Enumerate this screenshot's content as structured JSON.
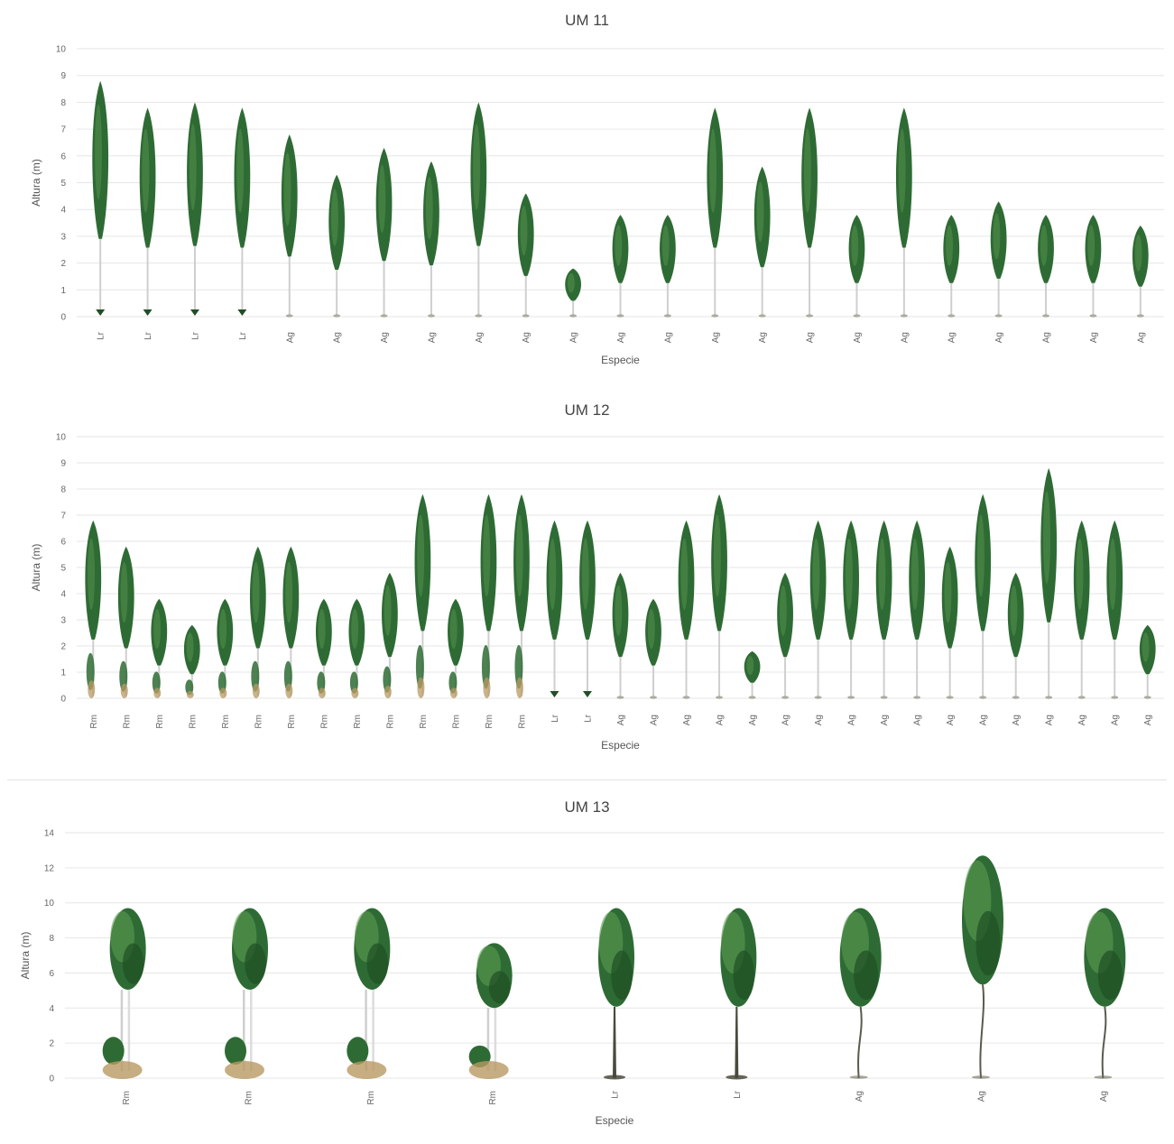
{
  "chart_data": [
    {
      "type": "bar",
      "mark_style": "tree-pictogram",
      "title": "UM 11",
      "xlabel": "Especie",
      "ylabel": "Altura (m)",
      "ylim": [
        0,
        10
      ],
      "yticks": [
        0,
        1,
        2,
        3,
        4,
        5,
        6,
        7,
        8,
        9,
        10
      ],
      "grid": true,
      "categories": [
        "Lr",
        "Lr",
        "Lr",
        "Lr",
        "Ag",
        "Ag",
        "Ag",
        "Ag",
        "Ag",
        "Ag",
        "Ag",
        "Ag",
        "Ag",
        "Ag",
        "Ag",
        "Ag",
        "Ag",
        "Ag",
        "Ag",
        "Ag",
        "Ag",
        "Ag",
        "Ag"
      ],
      "values": [
        8.8,
        7.8,
        8.0,
        7.8,
        6.8,
        5.3,
        6.3,
        5.8,
        8.0,
        4.6,
        1.8,
        3.8,
        3.8,
        7.8,
        5.6,
        7.8,
        3.8,
        7.8,
        3.8,
        4.3,
        3.8,
        3.8,
        3.4
      ]
    },
    {
      "type": "bar",
      "mark_style": "tree-pictogram",
      "title": "UM 12",
      "xlabel": "Especie",
      "ylabel": "Altura (m)",
      "ylim": [
        0,
        10
      ],
      "yticks": [
        0,
        1,
        2,
        3,
        4,
        5,
        6,
        7,
        8,
        9,
        10
      ],
      "grid": true,
      "categories": [
        "Rm",
        "Rm",
        "Rm",
        "Rm",
        "Rm",
        "Rm",
        "Rm",
        "Rm",
        "Rm",
        "Rm",
        "Rm",
        "Rm",
        "Rm",
        "Rm",
        "Lr",
        "Lr",
        "Ag",
        "Ag",
        "Ag",
        "Ag",
        "Ag",
        "Ag",
        "Ag",
        "Ag",
        "Ag",
        "Ag",
        "Ag",
        "Ag",
        "Ag",
        "Ag",
        "Ag",
        "Ag",
        "Ag"
      ],
      "values": [
        6.8,
        5.8,
        3.8,
        2.8,
        3.8,
        5.8,
        5.8,
        3.8,
        3.8,
        4.8,
        7.8,
        3.8,
        7.8,
        7.8,
        6.8,
        6.8,
        4.8,
        3.8,
        6.8,
        7.8,
        1.8,
        4.8,
        6.8,
        6.8,
        6.8,
        6.8,
        5.8,
        7.8,
        4.8,
        8.8,
        6.8,
        6.8,
        2.8
      ],
      "understory_values": [
        1.7,
        1.4,
        1.0,
        0.7,
        1.0,
        1.4,
        1.4,
        1.0,
        1.0,
        1.2,
        2.0,
        1.0,
        2.0,
        2.0,
        0,
        0,
        0,
        0,
        0,
        0,
        0,
        0,
        0,
        0,
        0,
        0,
        0,
        0,
        0,
        0,
        0,
        0,
        0
      ]
    },
    {
      "type": "bar",
      "mark_style": "tree-pictogram",
      "title": "UM 13",
      "xlabel": "Especie",
      "ylabel": "Altura (m)",
      "ylim": [
        0,
        14
      ],
      "yticks": [
        0,
        2,
        4,
        6,
        8,
        10,
        12,
        14
      ],
      "grid": true,
      "categories": [
        "Rm",
        "Rm",
        "Rm",
        "Rm",
        "Lr",
        "Lr",
        "Ag",
        "Ag",
        "Ag"
      ],
      "values": [
        9.7,
        9.7,
        9.7,
        7.7,
        9.7,
        9.7,
        9.7,
        12.7,
        9.7
      ],
      "understory_values": [
        2.4,
        2.4,
        2.4,
        1.9,
        0,
        0,
        0,
        0,
        0
      ]
    }
  ],
  "colors": {
    "foliage": "#2e6b34",
    "foliage_dark": "#1f4f24",
    "foliage_light": "#5b9a52",
    "trunk": "#cfcfcf",
    "trunk_dark": "#4a4a3c",
    "ground": "#b89a63",
    "grid": "#e6e6e6",
    "text": "#666666"
  }
}
